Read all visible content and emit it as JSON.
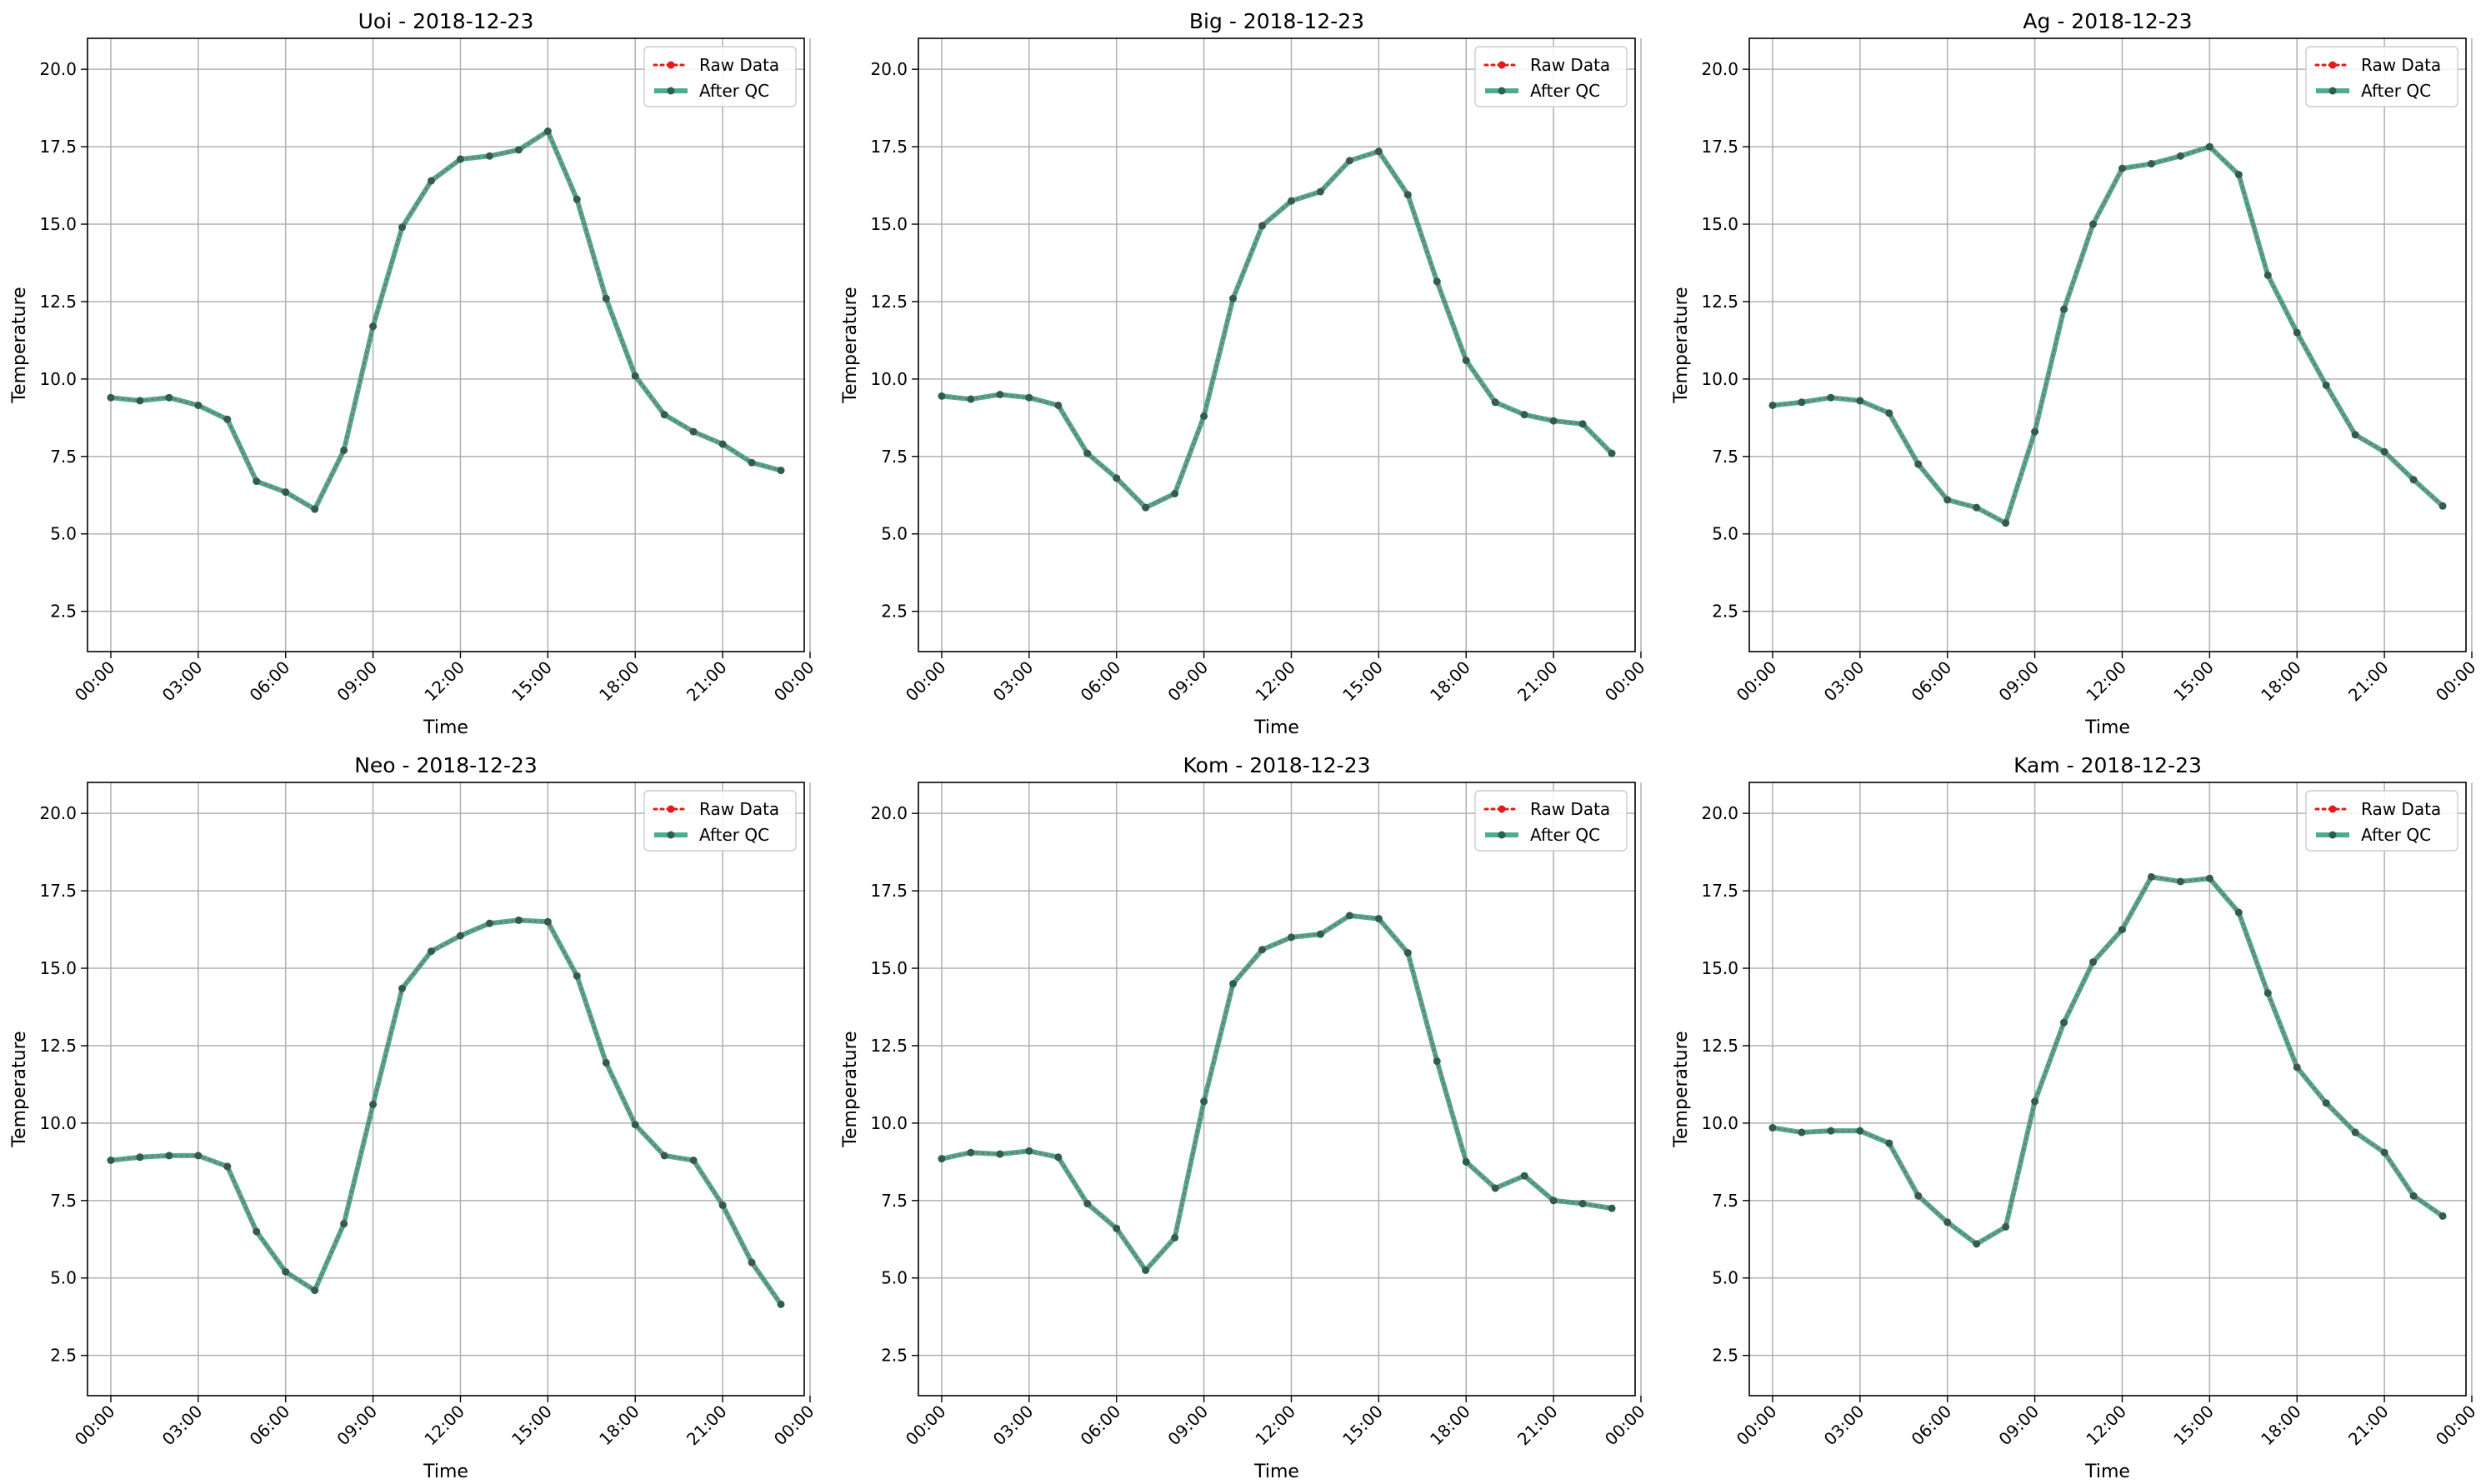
{
  "colors": {
    "raw": "#e41a1c",
    "qc": "#2e9e7b",
    "qc_marker": "#2d5e4e",
    "grid": "#b0b0b0"
  },
  "chart_data": [
    {
      "type": "line",
      "title": "Uoi - 2018-12-23",
      "xlabel": "Time",
      "ylabel": "Temperature",
      "ylim": [
        1.2,
        21.0
      ],
      "yticks": [
        2.5,
        5.0,
        7.5,
        10.0,
        12.5,
        15.0,
        17.5,
        20.0
      ],
      "ytick_labels": [
        "2.5",
        "5.0",
        "7.5",
        "10.0",
        "12.5",
        "15.0",
        "17.5",
        "20.0"
      ],
      "xlim": [
        -0.8,
        23.8
      ],
      "xticks": [
        0,
        3,
        6,
        9,
        12,
        15,
        18,
        21,
        24
      ],
      "xtick_labels": [
        "00:00",
        "03:00",
        "06:00",
        "09:00",
        "12:00",
        "15:00",
        "18:00",
        "21:00",
        "00:00"
      ],
      "grid": true,
      "legend_position": "top-right",
      "x": [
        0,
        1,
        2,
        3,
        4,
        5,
        6,
        7,
        8,
        9,
        10,
        11,
        12,
        13,
        14,
        15,
        16,
        17,
        18,
        19,
        20,
        21,
        22,
        23
      ],
      "series": [
        {
          "name": "Raw Data",
          "style": "dotted",
          "values": [
            9.4,
            9.3,
            9.4,
            9.15,
            8.7,
            6.7,
            6.35,
            5.8,
            7.7,
            11.7,
            14.9,
            16.4,
            17.1,
            17.2,
            17.4,
            18.0,
            15.8,
            12.6,
            10.1,
            8.85,
            8.3,
            7.9,
            7.3,
            7.05
          ]
        },
        {
          "name": "After QC",
          "style": "solid",
          "values": [
            9.4,
            9.3,
            9.4,
            9.15,
            8.7,
            6.7,
            6.35,
            5.8,
            7.7,
            11.7,
            14.9,
            16.4,
            17.1,
            17.2,
            17.4,
            18.0,
            15.8,
            12.6,
            10.1,
            8.85,
            8.3,
            7.9,
            7.3,
            7.05
          ]
        }
      ]
    },
    {
      "type": "line",
      "title": "Big - 2018-12-23",
      "xlabel": "Time",
      "ylabel": "Temperature",
      "ylim": [
        1.2,
        21.0
      ],
      "yticks": [
        2.5,
        5.0,
        7.5,
        10.0,
        12.5,
        15.0,
        17.5,
        20.0
      ],
      "ytick_labels": [
        "2.5",
        "5.0",
        "7.5",
        "10.0",
        "12.5",
        "15.0",
        "17.5",
        "20.0"
      ],
      "xlim": [
        -0.8,
        23.8
      ],
      "xticks": [
        0,
        3,
        6,
        9,
        12,
        15,
        18,
        21,
        24
      ],
      "xtick_labels": [
        "00:00",
        "03:00",
        "06:00",
        "09:00",
        "12:00",
        "15:00",
        "18:00",
        "21:00",
        "00:00"
      ],
      "grid": true,
      "legend_position": "top-right",
      "x": [
        0,
        1,
        2,
        3,
        4,
        5,
        6,
        7,
        8,
        9,
        10,
        11,
        12,
        13,
        14,
        15,
        16,
        17,
        18,
        19,
        20,
        21,
        22,
        23
      ],
      "series": [
        {
          "name": "Raw Data",
          "style": "dotted",
          "values": [
            9.45,
            9.35,
            9.5,
            9.4,
            9.15,
            7.6,
            6.8,
            5.85,
            6.3,
            8.8,
            12.6,
            14.95,
            15.75,
            16.05,
            17.05,
            17.35,
            15.95,
            13.15,
            10.6,
            9.25,
            8.85,
            8.65,
            8.55,
            7.6
          ]
        },
        {
          "name": "After QC",
          "style": "solid",
          "values": [
            9.45,
            9.35,
            9.5,
            9.4,
            9.15,
            7.6,
            6.8,
            5.85,
            6.3,
            8.8,
            12.6,
            14.95,
            15.75,
            16.05,
            17.05,
            17.35,
            15.95,
            13.15,
            10.6,
            9.25,
            8.85,
            8.65,
            8.55,
            7.6
          ]
        }
      ]
    },
    {
      "type": "line",
      "title": "Ag - 2018-12-23",
      "xlabel": "Time",
      "ylabel": "Temperature",
      "ylim": [
        1.2,
        21.0
      ],
      "yticks": [
        2.5,
        5.0,
        7.5,
        10.0,
        12.5,
        15.0,
        17.5,
        20.0
      ],
      "ytick_labels": [
        "2.5",
        "5.0",
        "7.5",
        "10.0",
        "12.5",
        "15.0",
        "17.5",
        "20.0"
      ],
      "xlim": [
        -0.8,
        23.8
      ],
      "xticks": [
        0,
        3,
        6,
        9,
        12,
        15,
        18,
        21,
        24
      ],
      "xtick_labels": [
        "00:00",
        "03:00",
        "06:00",
        "09:00",
        "12:00",
        "15:00",
        "18:00",
        "21:00",
        "00:00"
      ],
      "grid": true,
      "legend_position": "top-right",
      "x": [
        0,
        1,
        2,
        3,
        4,
        5,
        6,
        7,
        8,
        9,
        10,
        11,
        12,
        13,
        14,
        15,
        16,
        17,
        18,
        19,
        20,
        21,
        22,
        23
      ],
      "series": [
        {
          "name": "Raw Data",
          "style": "dotted",
          "values": [
            9.15,
            9.25,
            9.4,
            9.3,
            8.9,
            7.25,
            6.1,
            5.85,
            5.35,
            8.3,
            12.25,
            15.0,
            16.8,
            16.95,
            17.2,
            17.5,
            16.6,
            13.35,
            11.5,
            9.8,
            8.2,
            7.65,
            6.75,
            5.9
          ]
        },
        {
          "name": "After QC",
          "style": "solid",
          "values": [
            9.15,
            9.25,
            9.4,
            9.3,
            8.9,
            7.25,
            6.1,
            5.85,
            5.35,
            8.3,
            12.25,
            15.0,
            16.8,
            16.95,
            17.2,
            17.5,
            16.6,
            13.35,
            11.5,
            9.8,
            8.2,
            7.65,
            6.75,
            5.9
          ]
        }
      ]
    },
    {
      "type": "line",
      "title": "Neo - 2018-12-23",
      "xlabel": "Time",
      "ylabel": "Temperature",
      "ylim": [
        1.2,
        21.0
      ],
      "yticks": [
        2.5,
        5.0,
        7.5,
        10.0,
        12.5,
        15.0,
        17.5,
        20.0
      ],
      "ytick_labels": [
        "2.5",
        "5.0",
        "7.5",
        "10.0",
        "12.5",
        "15.0",
        "17.5",
        "20.0"
      ],
      "xlim": [
        -0.8,
        23.8
      ],
      "xticks": [
        0,
        3,
        6,
        9,
        12,
        15,
        18,
        21,
        24
      ],
      "xtick_labels": [
        "00:00",
        "03:00",
        "06:00",
        "09:00",
        "12:00",
        "15:00",
        "18:00",
        "21:00",
        "00:00"
      ],
      "grid": true,
      "legend_position": "top-right",
      "x": [
        0,
        1,
        2,
        3,
        4,
        5,
        6,
        7,
        8,
        9,
        10,
        11,
        12,
        13,
        14,
        15,
        16,
        17,
        18,
        19,
        20,
        21,
        22,
        23
      ],
      "series": [
        {
          "name": "Raw Data",
          "style": "dotted",
          "values": [
            8.8,
            8.9,
            8.95,
            8.95,
            8.6,
            6.5,
            5.2,
            4.6,
            6.75,
            10.6,
            14.35,
            15.55,
            16.05,
            16.45,
            16.55,
            16.5,
            14.75,
            11.95,
            9.95,
            8.95,
            8.8,
            7.35,
            5.5,
            4.15
          ]
        },
        {
          "name": "After QC",
          "style": "solid",
          "values": [
            8.8,
            8.9,
            8.95,
            8.95,
            8.6,
            6.5,
            5.2,
            4.6,
            6.75,
            10.6,
            14.35,
            15.55,
            16.05,
            16.45,
            16.55,
            16.5,
            14.75,
            11.95,
            9.95,
            8.95,
            8.8,
            7.35,
            5.5,
            4.15
          ]
        }
      ]
    },
    {
      "type": "line",
      "title": "Kom - 2018-12-23",
      "xlabel": "Time",
      "ylabel": "Temperature",
      "ylim": [
        1.2,
        21.0
      ],
      "yticks": [
        2.5,
        5.0,
        7.5,
        10.0,
        12.5,
        15.0,
        17.5,
        20.0
      ],
      "ytick_labels": [
        "2.5",
        "5.0",
        "7.5",
        "10.0",
        "12.5",
        "15.0",
        "17.5",
        "20.0"
      ],
      "xlim": [
        -0.8,
        23.8
      ],
      "xticks": [
        0,
        3,
        6,
        9,
        12,
        15,
        18,
        21,
        24
      ],
      "xtick_labels": [
        "00:00",
        "03:00",
        "06:00",
        "09:00",
        "12:00",
        "15:00",
        "18:00",
        "21:00",
        "00:00"
      ],
      "grid": true,
      "legend_position": "top-right",
      "x": [
        0,
        1,
        2,
        3,
        4,
        5,
        6,
        7,
        8,
        9,
        10,
        11,
        12,
        13,
        14,
        15,
        16,
        17,
        18,
        19,
        20,
        21,
        22,
        23
      ],
      "series": [
        {
          "name": "Raw Data",
          "style": "dotted",
          "values": [
            8.85,
            9.05,
            9.0,
            9.1,
            8.9,
            7.4,
            6.6,
            5.25,
            6.3,
            10.7,
            14.5,
            15.6,
            16.0,
            16.1,
            16.7,
            16.6,
            15.5,
            12.0,
            8.75,
            7.9,
            8.3,
            7.5,
            7.4,
            7.25
          ]
        },
        {
          "name": "After QC",
          "style": "solid",
          "values": [
            8.85,
            9.05,
            9.0,
            9.1,
            8.9,
            7.4,
            6.6,
            5.25,
            6.3,
            10.7,
            14.5,
            15.6,
            16.0,
            16.1,
            16.7,
            16.6,
            15.5,
            12.0,
            8.75,
            7.9,
            8.3,
            7.5,
            7.4,
            7.25
          ]
        }
      ]
    },
    {
      "type": "line",
      "title": "Kam - 2018-12-23",
      "xlabel": "Time",
      "ylabel": "Temperature",
      "ylim": [
        1.2,
        21.0
      ],
      "yticks": [
        2.5,
        5.0,
        7.5,
        10.0,
        12.5,
        15.0,
        17.5,
        20.0
      ],
      "ytick_labels": [
        "2.5",
        "5.0",
        "7.5",
        "10.0",
        "12.5",
        "15.0",
        "17.5",
        "20.0"
      ],
      "xlim": [
        -0.8,
        23.8
      ],
      "xticks": [
        0,
        3,
        6,
        9,
        12,
        15,
        18,
        21,
        24
      ],
      "xtick_labels": [
        "00:00",
        "03:00",
        "06:00",
        "09:00",
        "12:00",
        "15:00",
        "18:00",
        "21:00",
        "00:00"
      ],
      "grid": true,
      "legend_position": "top-right",
      "x": [
        0,
        1,
        2,
        3,
        4,
        5,
        6,
        7,
        8,
        9,
        10,
        11,
        12,
        13,
        14,
        15,
        16,
        17,
        18,
        19,
        20,
        21,
        22,
        23
      ],
      "series": [
        {
          "name": "Raw Data",
          "style": "dotted",
          "values": [
            9.85,
            9.7,
            9.75,
            9.75,
            9.35,
            7.65,
            6.8,
            6.1,
            6.65,
            10.7,
            13.25,
            15.2,
            16.25,
            17.95,
            17.8,
            17.9,
            16.8,
            14.2,
            11.8,
            10.65,
            9.7,
            9.05,
            7.65,
            7.0
          ]
        },
        {
          "name": "After QC",
          "style": "solid",
          "values": [
            9.85,
            9.7,
            9.75,
            9.75,
            9.35,
            7.65,
            6.8,
            6.1,
            6.65,
            10.7,
            13.25,
            15.2,
            16.25,
            17.95,
            17.8,
            17.9,
            16.8,
            14.2,
            11.8,
            10.65,
            9.7,
            9.05,
            7.65,
            7.0
          ]
        }
      ]
    }
  ]
}
